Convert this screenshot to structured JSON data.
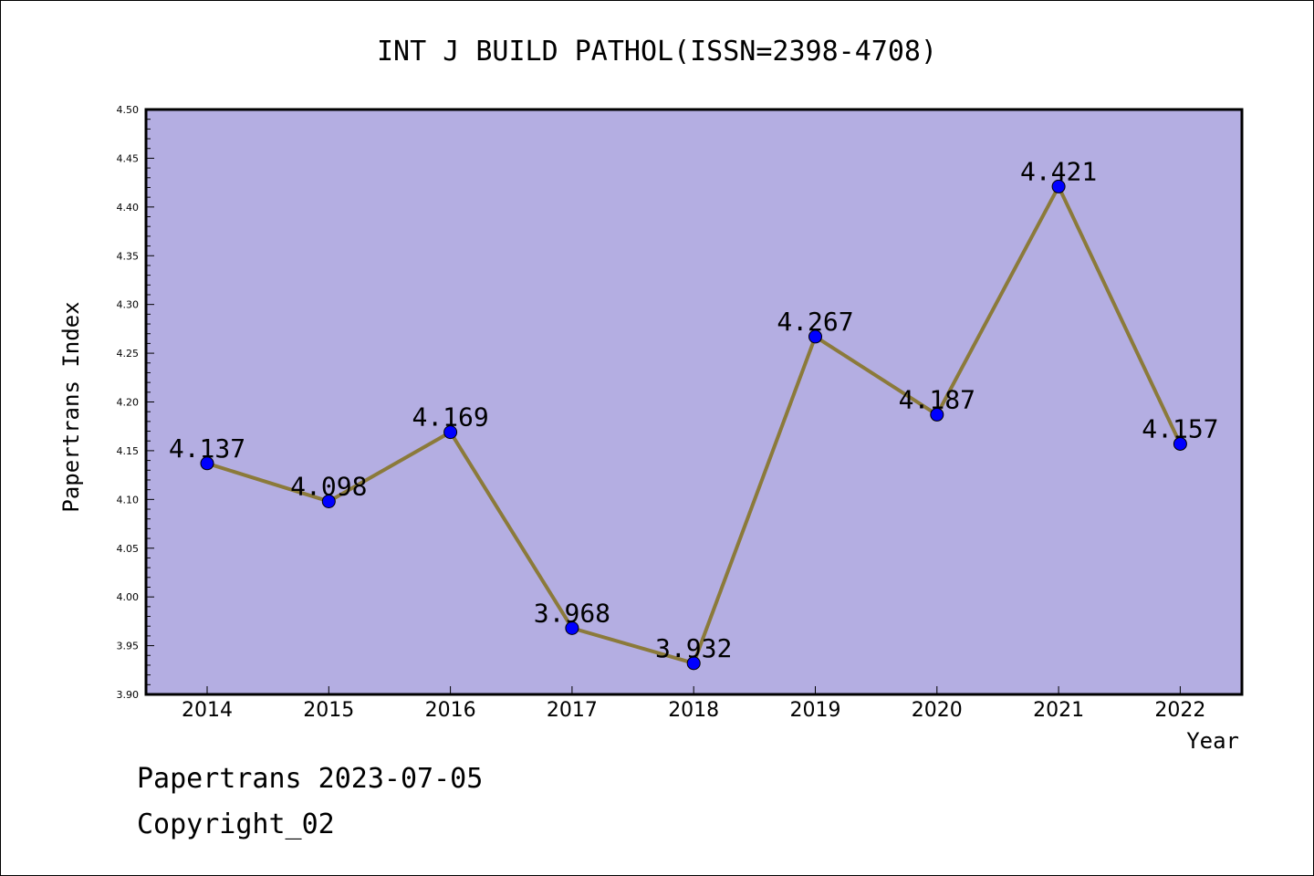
{
  "chart_data": {
    "type": "line",
    "title": "INT J BUILD PATHOL(ISSN=2398-4708)",
    "xlabel": "Year",
    "ylabel": "Papertrans Index",
    "categories": [
      "2014",
      "2015",
      "2016",
      "2017",
      "2018",
      "2019",
      "2020",
      "2021",
      "2022"
    ],
    "series": [
      {
        "values": [
          4.137,
          4.098,
          4.169,
          3.968,
          3.932,
          4.267,
          4.187,
          4.421,
          4.157
        ],
        "labels": [
          "4.137",
          "4.098",
          "4.169",
          "3.968",
          "3.932",
          "4.267",
          "4.187",
          "4.421",
          "4.157"
        ],
        "line_color": "#8b7a3a",
        "marker_color": "#0000ff"
      }
    ],
    "ylim": [
      3.9,
      4.5
    ],
    "yticks": [
      "3.90",
      "3.95",
      "4.00",
      "4.05",
      "4.10",
      "4.15",
      "4.20",
      "4.25",
      "4.30",
      "4.35",
      "4.40",
      "4.45",
      "4.50"
    ],
    "plot_background": "#b4aee2",
    "grid": false,
    "legend": "none"
  },
  "footer": {
    "line1": "Papertrans 2023-07-05",
    "line2": "Copyright_02"
  }
}
